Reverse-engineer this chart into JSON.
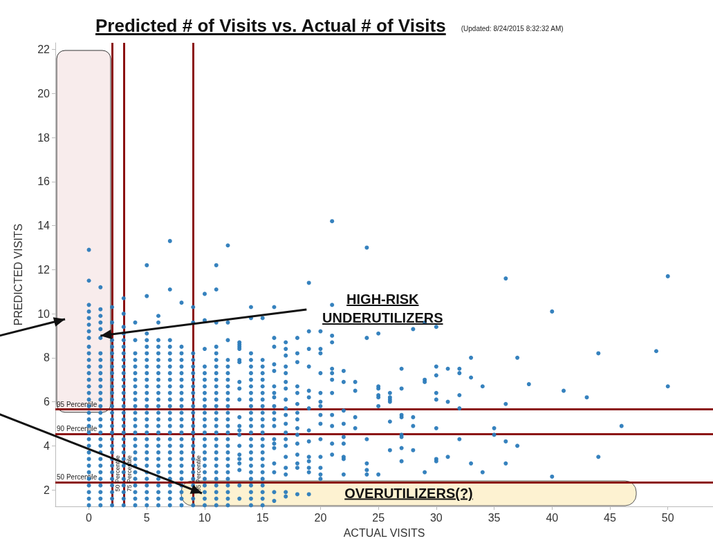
{
  "chart_data": {
    "type": "scatter",
    "title": "Predicted # of Visits vs. Actual # of Visits",
    "subtitle": "(Updated: 8/24/2015 8:32:32 AM)",
    "xlabel": "ACTUAL VISITS",
    "ylabel": "PREDICTED VISITS",
    "xlim": [
      -2.9,
      53.9
    ],
    "ylim": [
      1.25,
      22.3
    ],
    "xticks": [
      0,
      5,
      10,
      15,
      20,
      25,
      30,
      35,
      40,
      45,
      50
    ],
    "yticks": [
      2,
      4,
      6,
      8,
      10,
      12,
      14,
      16,
      18,
      20,
      22
    ],
    "marker": "circle",
    "series": [
      {
        "color": "#2b7bba",
        "x": [
          0,
          0,
          0,
          0,
          0,
          0,
          0,
          0,
          0,
          0,
          0,
          0,
          0,
          0,
          0,
          0,
          0,
          0,
          0,
          0,
          0,
          0,
          0,
          0,
          0,
          0,
          0,
          0,
          0,
          0,
          0,
          0,
          0,
          1,
          1,
          1,
          1,
          1,
          1,
          1,
          1,
          1,
          1,
          1,
          1,
          1,
          1,
          1,
          1,
          1,
          1,
          1,
          1,
          1,
          1,
          1,
          1,
          1,
          1,
          1,
          1,
          1,
          1,
          2,
          2,
          2,
          2,
          2,
          2,
          2,
          2,
          2,
          2,
          2,
          2,
          2,
          2,
          2,
          2,
          2,
          2,
          2,
          2,
          2,
          2,
          2,
          2,
          2,
          2,
          2,
          2,
          3,
          3,
          3,
          3,
          3,
          3,
          3,
          3,
          3,
          3,
          3,
          3,
          3,
          3,
          3,
          3,
          3,
          3,
          3,
          3,
          3,
          3,
          3,
          3,
          3,
          3,
          3,
          3,
          3,
          3,
          4,
          4,
          4,
          4,
          4,
          4,
          4,
          4,
          4,
          4,
          4,
          4,
          4,
          4,
          4,
          4,
          4,
          4,
          4,
          4,
          4,
          4,
          4,
          4,
          4,
          4,
          5,
          5,
          5,
          5,
          5,
          5,
          5,
          5,
          5,
          5,
          5,
          5,
          5,
          5,
          5,
          5,
          5,
          5,
          5,
          5,
          5,
          5,
          5,
          5,
          5,
          5,
          5,
          5,
          5,
          6,
          6,
          6,
          6,
          6,
          6,
          6,
          6,
          6,
          6,
          6,
          6,
          6,
          6,
          6,
          6,
          6,
          6,
          6,
          6,
          6,
          6,
          6,
          6,
          6,
          6,
          6,
          6,
          7,
          7,
          7,
          7,
          7,
          7,
          7,
          7,
          7,
          7,
          7,
          7,
          7,
          7,
          7,
          7,
          7,
          7,
          7,
          7,
          7,
          7,
          7,
          7,
          7,
          7,
          7,
          7,
          8,
          8,
          8,
          8,
          8,
          8,
          8,
          8,
          8,
          8,
          8,
          8,
          8,
          8,
          8,
          8,
          8,
          8,
          8,
          8,
          8,
          8,
          8,
          8,
          8,
          8,
          9,
          9,
          9,
          9,
          9,
          9,
          9,
          9,
          9,
          9,
          9,
          9,
          9,
          9,
          9,
          9,
          9,
          9,
          9,
          9,
          9,
          9,
          9,
          9,
          9,
          10,
          10,
          10,
          10,
          10,
          10,
          10,
          10,
          10,
          10,
          10,
          10,
          10,
          10,
          10,
          10,
          10,
          10,
          10,
          10,
          10,
          10,
          10,
          10,
          10,
          11,
          11,
          11,
          11,
          11,
          11,
          11,
          11,
          11,
          11,
          11,
          11,
          11,
          11,
          11,
          11,
          11,
          11,
          11,
          11,
          11,
          11,
          11,
          11,
          11,
          11,
          11,
          11,
          12,
          12,
          12,
          12,
          12,
          12,
          12,
          12,
          12,
          12,
          12,
          12,
          12,
          12,
          12,
          12,
          12,
          12,
          12,
          12,
          12,
          12,
          12,
          12,
          12,
          12,
          13,
          13,
          13,
          13,
          13,
          13,
          13,
          13,
          13,
          13,
          13,
          13,
          13,
          13,
          13,
          13,
          13,
          13,
          13,
          13,
          14,
          14,
          14,
          14,
          14,
          14,
          14,
          14,
          14,
          14,
          14,
          14,
          14,
          14,
          14,
          14,
          14,
          14,
          14,
          14,
          14,
          14,
          14,
          14,
          14,
          14,
          15,
          15,
          15,
          15,
          15,
          15,
          15,
          15,
          15,
          15,
          15,
          15,
          15,
          15,
          15,
          15,
          15,
          15,
          15,
          15,
          15,
          15,
          15,
          15,
          16,
          16,
          16,
          16,
          16,
          16,
          16,
          16,
          16,
          16,
          16,
          16,
          16,
          16,
          16,
          16,
          16,
          16,
          16,
          17,
          17,
          17,
          17,
          17,
          17,
          17,
          17,
          17,
          17,
          17,
          17,
          17,
          17,
          17,
          17,
          17,
          17,
          17,
          18,
          18,
          18,
          18,
          18,
          18,
          18,
          18,
          18,
          18,
          18,
          18,
          18,
          18,
          18,
          19,
          19,
          19,
          19,
          19,
          19,
          19,
          19,
          19,
          19,
          19,
          19,
          19,
          19,
          20,
          20,
          20,
          20,
          20,
          20,
          20,
          20,
          20,
          20,
          20,
          20,
          20,
          20,
          21,
          21,
          21,
          21,
          21,
          21,
          21,
          21,
          21,
          21,
          21,
          21,
          22,
          22,
          22,
          22,
          22,
          22,
          22,
          22,
          22,
          23,
          23,
          23,
          23,
          24,
          24,
          24,
          24,
          24,
          24,
          25,
          25,
          25,
          25,
          25,
          25,
          25,
          26,
          26,
          26,
          26,
          26,
          26,
          27,
          27,
          27,
          27,
          27,
          27,
          27,
          27,
          28,
          28,
          28,
          28,
          29,
          29,
          29,
          29,
          30,
          30,
          30,
          30,
          30,
          30,
          30,
          30,
          31,
          31,
          31,
          32,
          32,
          32,
          32,
          32,
          33,
          33,
          33,
          34,
          34,
          35,
          35,
          36,
          36,
          36,
          36,
          37,
          37,
          38,
          40,
          40,
          41,
          43,
          44,
          44,
          46,
          49,
          50,
          50
        ],
        "values": [
          1.3,
          1.6,
          1.9,
          2.2,
          2.5,
          2.8,
          3.1,
          3.4,
          3.7,
          4.0,
          4.3,
          4.6,
          4.9,
          5.2,
          5.5,
          5.8,
          6.1,
          6.4,
          6.7,
          7.0,
          7.3,
          7.6,
          7.9,
          8.2,
          8.5,
          8.9,
          9.2,
          9.5,
          9.8,
          10.1,
          10.4,
          11.5,
          12.9,
          1.3,
          1.6,
          1.9,
          2.2,
          2.5,
          2.8,
          3.1,
          3.4,
          3.7,
          4.0,
          4.3,
          4.6,
          4.9,
          5.2,
          5.5,
          5.8,
          6.1,
          6.4,
          6.7,
          7.0,
          7.3,
          7.6,
          7.9,
          8.2,
          8.9,
          9.3,
          9.6,
          9.9,
          10.2,
          11.2,
          1.3,
          1.6,
          1.9,
          2.2,
          2.5,
          2.8,
          3.1,
          3.4,
          3.7,
          4.0,
          4.3,
          4.6,
          4.9,
          5.2,
          5.5,
          5.8,
          6.1,
          6.4,
          6.7,
          7.0,
          7.3,
          7.6,
          7.9,
          8.2,
          8.5,
          8.8,
          9.6,
          10.3,
          1.3,
          1.6,
          1.9,
          2.2,
          2.5,
          2.8,
          3.1,
          3.4,
          3.7,
          4.0,
          4.3,
          4.6,
          4.9,
          5.2,
          5.5,
          5.8,
          6.1,
          6.4,
          6.7,
          7.0,
          7.3,
          7.6,
          7.9,
          8.2,
          8.5,
          8.8,
          9.1,
          9.4,
          10.0,
          10.7,
          1.3,
          1.6,
          1.9,
          2.2,
          2.5,
          2.8,
          3.1,
          3.4,
          3.7,
          4.0,
          4.3,
          4.6,
          4.9,
          5.2,
          5.5,
          5.8,
          6.1,
          6.4,
          6.7,
          7.0,
          7.3,
          7.6,
          7.9,
          8.2,
          8.8,
          9.6,
          1.3,
          1.6,
          1.9,
          2.2,
          2.5,
          2.8,
          3.1,
          3.4,
          3.7,
          4.0,
          4.3,
          4.6,
          4.9,
          5.2,
          5.5,
          5.8,
          6.1,
          6.4,
          6.7,
          7.0,
          7.3,
          7.6,
          7.9,
          8.2,
          8.5,
          8.8,
          9.1,
          10.8,
          12.2,
          1.3,
          1.6,
          1.9,
          2.2,
          2.5,
          2.8,
          3.1,
          3.4,
          3.7,
          4.0,
          4.3,
          4.6,
          4.9,
          5.2,
          5.5,
          5.8,
          6.1,
          6.4,
          6.7,
          7.0,
          7.3,
          7.6,
          7.9,
          8.2,
          8.5,
          8.8,
          9.6,
          9.9,
          1.3,
          1.6,
          1.9,
          2.2,
          2.5,
          2.8,
          3.1,
          3.4,
          3.7,
          4.0,
          4.3,
          4.6,
          4.9,
          5.2,
          5.5,
          5.8,
          6.1,
          6.4,
          6.7,
          7.0,
          7.3,
          7.6,
          7.9,
          8.2,
          8.5,
          8.8,
          11.1,
          13.3,
          1.3,
          1.6,
          1.9,
          2.2,
          2.5,
          2.8,
          3.1,
          3.4,
          3.7,
          4.0,
          4.3,
          4.6,
          4.9,
          5.2,
          5.5,
          5.8,
          6.1,
          6.4,
          6.7,
          7.0,
          7.3,
          7.6,
          7.9,
          8.2,
          8.5,
          10.5,
          1.3,
          1.6,
          2.2,
          2.5,
          2.8,
          3.1,
          3.4,
          3.7,
          4.0,
          4.3,
          4.6,
          4.9,
          5.2,
          5.5,
          5.8,
          6.1,
          6.4,
          6.7,
          7.0,
          7.3,
          7.6,
          7.9,
          8.2,
          9.6,
          10.3,
          1.3,
          1.6,
          1.9,
          2.2,
          2.5,
          2.8,
          3.1,
          3.4,
          3.7,
          4.0,
          4.3,
          4.6,
          4.9,
          5.2,
          5.5,
          5.8,
          6.1,
          6.4,
          6.7,
          7.0,
          7.3,
          7.6,
          8.4,
          9.7,
          10.9,
          1.3,
          1.6,
          1.9,
          2.2,
          2.5,
          2.8,
          3.1,
          3.4,
          3.7,
          4.0,
          4.3,
          4.6,
          4.9,
          5.2,
          5.5,
          5.8,
          6.1,
          6.4,
          6.7,
          7.0,
          7.3,
          7.6,
          7.9,
          8.2,
          8.5,
          9.6,
          11.1,
          12.2,
          1.3,
          1.6,
          1.9,
          2.2,
          2.5,
          2.8,
          3.1,
          3.4,
          3.7,
          4.0,
          4.3,
          4.6,
          4.9,
          5.2,
          5.5,
          5.8,
          6.1,
          6.4,
          6.7,
          7.0,
          7.3,
          7.6,
          7.9,
          8.8,
          9.6,
          13.1,
          8.7,
          8.6,
          8.5,
          8.4,
          7.9,
          7.8,
          6.9,
          6.6,
          6.1,
          5.3,
          4.9,
          4.7,
          4.5,
          4.0,
          3.6,
          3.4,
          3.2,
          2.9,
          2.2,
          1.6,
          1.3,
          1.6,
          1.9,
          2.2,
          2.5,
          2.8,
          3.1,
          3.4,
          3.7,
          4.0,
          4.3,
          4.6,
          4.9,
          5.2,
          5.5,
          5.8,
          6.1,
          6.4,
          6.7,
          7.0,
          7.3,
          7.6,
          7.9,
          8.2,
          9.8,
          10.3,
          1.3,
          1.6,
          1.9,
          2.2,
          2.5,
          2.8,
          3.1,
          3.4,
          3.7,
          4.0,
          4.3,
          4.6,
          4.9,
          5.2,
          5.5,
          5.8,
          6.1,
          6.4,
          6.7,
          7.0,
          7.3,
          7.6,
          7.9,
          9.8,
          10.3,
          8.9,
          8.5,
          7.7,
          7.4,
          6.7,
          6.4,
          6.2,
          5.8,
          5.5,
          5.2,
          4.9,
          4.3,
          4.1,
          3.9,
          3.2,
          2.8,
          1.9,
          1.5,
          8.7,
          8.4,
          8.1,
          7.6,
          7.3,
          6.9,
          6.6,
          6.1,
          5.7,
          5.4,
          5.0,
          4.6,
          4.3,
          4.0,
          3.5,
          3.0,
          2.7,
          1.9,
          1.7,
          8.9,
          8.2,
          7.8,
          6.7,
          6.4,
          5.9,
          5.5,
          5.2,
          4.8,
          4.5,
          4.1,
          3.6,
          3.2,
          3.0,
          1.8,
          11.4,
          9.2,
          8.4,
          7.6,
          6.5,
          6.2,
          5.7,
          4.7,
          4.2,
          3.5,
          3.3,
          3.0,
          2.8,
          1.8,
          9.2,
          8.4,
          8.2,
          7.3,
          6.4,
          6.0,
          5.8,
          5.4,
          5.0,
          4.3,
          3.5,
          3.0,
          2.7,
          2.5,
          14.2,
          10.4,
          9.0,
          8.7,
          7.5,
          7.3,
          7.0,
          6.4,
          5.4,
          4.9,
          4.1,
          3.6,
          7.4,
          6.9,
          5.6,
          5.0,
          4.4,
          4.1,
          3.5,
          3.4,
          2.7,
          6.9,
          6.5,
          5.3,
          4.8,
          13.0,
          8.9,
          4.3,
          3.2,
          2.9,
          2.7,
          9.1,
          6.7,
          6.6,
          6.3,
          6.2,
          5.8,
          2.7,
          6.4,
          6.2,
          6.1,
          6.0,
          5.1,
          3.8,
          7.5,
          6.6,
          5.4,
          5.3,
          4.5,
          4.4,
          3.9,
          3.3,
          9.3,
          5.3,
          4.9,
          3.8,
          9.6,
          7.0,
          6.9,
          2.8,
          9.4,
          7.6,
          7.2,
          6.4,
          6.1,
          4.8,
          3.4,
          3.3,
          7.5,
          6.0,
          3.5,
          7.5,
          7.3,
          6.3,
          5.7,
          4.3,
          8.0,
          7.1,
          3.2,
          6.7,
          2.8,
          4.8,
          4.5,
          11.6,
          5.9,
          4.2,
          3.2,
          8.0,
          4.0,
          6.8,
          10.1,
          2.6,
          6.5,
          6.2,
          8.2,
          3.5,
          4.9,
          8.3,
          11.7,
          6.7
        ]
      }
    ],
    "ref_lines": [
      {
        "axis": "y",
        "value": 5.65,
        "label": "95 Percentile",
        "color": "#8b1010"
      },
      {
        "axis": "y",
        "value": 4.55,
        "label": "90 Percentile",
        "color": "#8b1010"
      },
      {
        "axis": "y",
        "value": 2.35,
        "label": "50 Percentile",
        "color": "#8b1010"
      },
      {
        "axis": "x",
        "value": 2,
        "label": "50 Percentile",
        "color": "#8b1010"
      },
      {
        "axis": "x",
        "value": 3,
        "label": "75 Percentile",
        "color": "#8b1010"
      },
      {
        "axis": "x",
        "value": 9,
        "label": "95 Percentile",
        "color": "#8b1010"
      }
    ],
    "annotations": [
      {
        "text": "HIGH-RISK\nUNDERUTILIZERS",
        "x": 1,
        "y": 9.0
      },
      "OVERUTILIZERS(?)"
    ]
  }
}
